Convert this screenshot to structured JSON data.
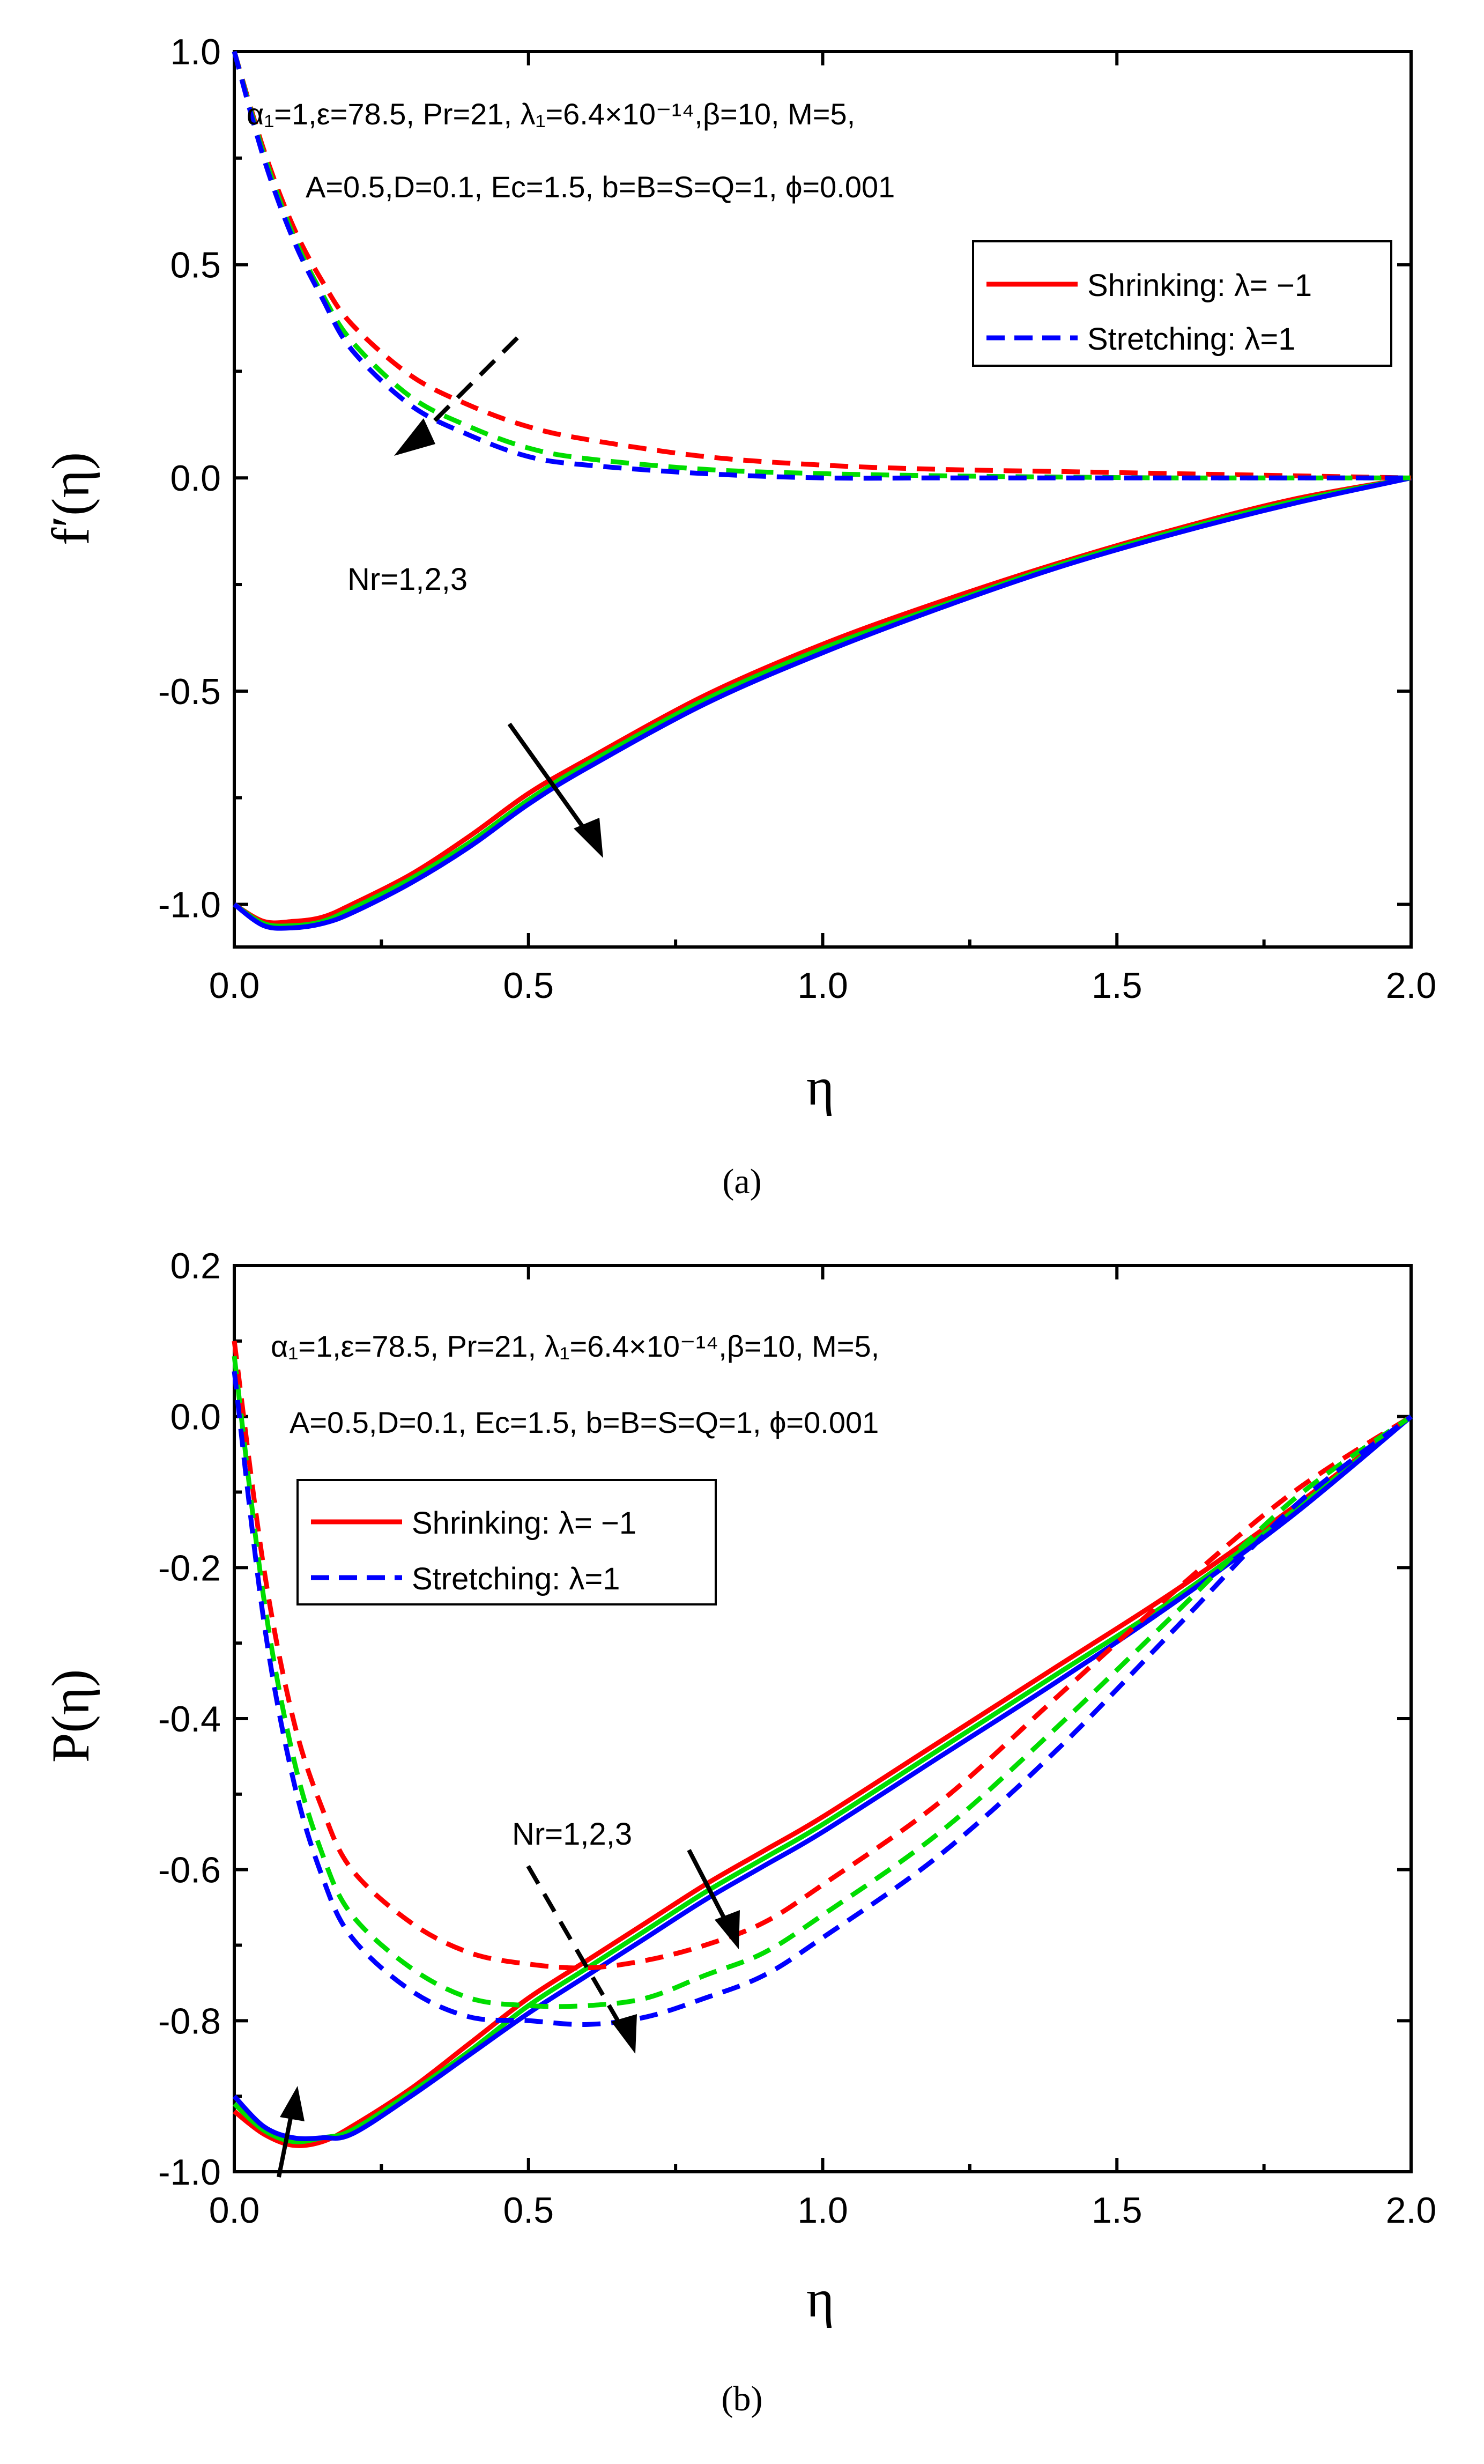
{
  "chart_data": [
    {
      "type": "line",
      "caption": "(a)",
      "xlabel": "η",
      "ylabel": "f′(η)",
      "xlim": [
        0,
        2
      ],
      "ylim": [
        -1.1,
        1.0
      ],
      "xticks": [
        "0.0",
        "0.5",
        "1.0",
        "1.5",
        "2.0"
      ],
      "yticks": [
        "1.0",
        "0.5",
        "0.0",
        "-0.5",
        "-1.0"
      ],
      "ytick_values": [
        1.0,
        0.5,
        0.0,
        -0.5,
        -1.0
      ],
      "xtick_values": [
        0,
        0.5,
        1.0,
        1.5,
        2.0
      ],
      "params_line1": "α₁=1,ε=78.5, Pr=21, λ₁=6.4×10⁻¹⁴,β=10, M=5,",
      "params_line2": "A=0.5,D=0.1, Ec=1.5, b=B=S=Q=1, ϕ=0.001",
      "legend": {
        "shrinking": "Shrinking: λ= −1",
        "stretching": "Stretching: λ=1"
      },
      "annotation": "Nr=1,2,3",
      "colors": [
        "#ff0000",
        "#00dd00",
        "#0000ff"
      ],
      "x": [
        0,
        0.05,
        0.1,
        0.15,
        0.2,
        0.3,
        0.4,
        0.5,
        0.6,
        0.8,
        1.0,
        1.2,
        1.4,
        1.6,
        1.8,
        2.0
      ],
      "series": [
        {
          "name": "Shrinking Nr=1",
          "style": "solid",
          "color": "#ff0000",
          "values": [
            -1.0,
            -1.04,
            -1.04,
            -1.03,
            -1.0,
            -0.93,
            -0.84,
            -0.74,
            -0.66,
            -0.51,
            -0.39,
            -0.29,
            -0.2,
            -0.12,
            -0.05,
            0.0
          ]
        },
        {
          "name": "Shrinking Nr=2",
          "style": "solid",
          "color": "#00dd00",
          "values": [
            -1.0,
            -1.045,
            -1.05,
            -1.04,
            -1.01,
            -0.94,
            -0.855,
            -0.755,
            -0.67,
            -0.52,
            -0.4,
            -0.3,
            -0.205,
            -0.125,
            -0.055,
            0.0
          ]
        },
        {
          "name": "Shrinking Nr=3",
          "style": "solid",
          "color": "#0000ff",
          "values": [
            -1.0,
            -1.05,
            -1.055,
            -1.045,
            -1.02,
            -0.95,
            -0.865,
            -0.765,
            -0.68,
            -0.53,
            -0.41,
            -0.305,
            -0.21,
            -0.13,
            -0.06,
            0.0
          ]
        },
        {
          "name": "Stretching Nr=1",
          "style": "dashed",
          "color": "#ff0000",
          "values": [
            1.0,
            0.77,
            0.59,
            0.46,
            0.36,
            0.24,
            0.17,
            0.12,
            0.09,
            0.05,
            0.03,
            0.02,
            0.015,
            0.01,
            0.005,
            0.0
          ]
        },
        {
          "name": "Stretching Nr=2",
          "style": "dashed",
          "color": "#00dd00",
          "values": [
            1.0,
            0.76,
            0.57,
            0.43,
            0.32,
            0.19,
            0.12,
            0.07,
            0.045,
            0.02,
            0.01,
            0.005,
            0.002,
            0.0,
            0.0,
            0.0
          ]
        },
        {
          "name": "Stretching Nr=3",
          "style": "dashed",
          "color": "#0000ff",
          "values": [
            1.0,
            0.75,
            0.56,
            0.42,
            0.3,
            0.17,
            0.1,
            0.05,
            0.03,
            0.01,
            0.0,
            0.0,
            0.0,
            0.0,
            0.0,
            0.0
          ]
        }
      ]
    },
    {
      "type": "line",
      "caption": "(b)",
      "xlabel": "η",
      "ylabel": "P(η)",
      "xlim": [
        0,
        2
      ],
      "ylim": [
        -1.0,
        0.2
      ],
      "xticks": [
        "0.0",
        "0.5",
        "1.0",
        "1.5",
        "2.0"
      ],
      "yticks": [
        "0.2",
        "0.0",
        "-0.2",
        "-0.4",
        "-0.6",
        "-0.8",
        "-1.0"
      ],
      "ytick_values": [
        0.2,
        0.0,
        -0.2,
        -0.4,
        -0.6,
        -0.8,
        -1.0
      ],
      "xtick_values": [
        0,
        0.5,
        1.0,
        1.5,
        2.0
      ],
      "params_line1": "α₁=1,ε=78.5, Pr=21, λ₁=6.4×10⁻¹⁴,β=10, M=5,",
      "params_line2": "A=0.5,D=0.1, Ec=1.5, b=B=S=Q=1, ϕ=0.001",
      "legend": {
        "shrinking": "Shrinking: λ= −1",
        "stretching": "Stretching: λ=1"
      },
      "annotation": "Nr=1,2,3",
      "colors": [
        "#ff0000",
        "#00dd00",
        "#0000ff"
      ],
      "x": [
        0,
        0.05,
        0.1,
        0.15,
        0.2,
        0.3,
        0.4,
        0.5,
        0.6,
        0.7,
        0.8,
        0.9,
        1.0,
        1.2,
        1.4,
        1.6,
        1.8,
        2.0
      ],
      "series": [
        {
          "name": "Shrinking Nr=1",
          "style": "solid",
          "color": "#ff0000",
          "values": [
            -0.92,
            -0.95,
            -0.965,
            -0.96,
            -0.94,
            -0.89,
            -0.83,
            -0.77,
            -0.72,
            -0.67,
            -0.62,
            -0.575,
            -0.53,
            -0.43,
            -0.33,
            -0.23,
            -0.12,
            0.0
          ]
        },
        {
          "name": "Shrinking Nr=2",
          "style": "solid",
          "color": "#00dd00",
          "values": [
            -0.91,
            -0.945,
            -0.96,
            -0.955,
            -0.945,
            -0.895,
            -0.84,
            -0.78,
            -0.73,
            -0.68,
            -0.63,
            -0.585,
            -0.54,
            -0.44,
            -0.34,
            -0.24,
            -0.125,
            0.0
          ]
        },
        {
          "name": "Shrinking Nr=3",
          "style": "solid",
          "color": "#0000ff",
          "values": [
            -0.9,
            -0.94,
            -0.955,
            -0.955,
            -0.95,
            -0.9,
            -0.845,
            -0.79,
            -0.74,
            -0.69,
            -0.64,
            -0.595,
            -0.55,
            -0.45,
            -0.35,
            -0.245,
            -0.13,
            0.0
          ]
        },
        {
          "name": "Stretching Nr=1",
          "style": "dashed",
          "color": "#ff0000",
          "values": [
            0.1,
            -0.2,
            -0.4,
            -0.52,
            -0.6,
            -0.67,
            -0.71,
            -0.725,
            -0.73,
            -0.72,
            -0.7,
            -0.67,
            -0.62,
            -0.51,
            -0.37,
            -0.23,
            -0.1,
            0.0
          ]
        },
        {
          "name": "Stretching Nr=2",
          "style": "dashed",
          "color": "#00dd00",
          "values": [
            0.08,
            -0.24,
            -0.45,
            -0.58,
            -0.66,
            -0.73,
            -0.77,
            -0.78,
            -0.78,
            -0.77,
            -0.74,
            -0.71,
            -0.66,
            -0.55,
            -0.41,
            -0.26,
            -0.11,
            0.0
          ]
        },
        {
          "name": "Stretching Nr=3",
          "style": "dashed",
          "color": "#0000ff",
          "values": [
            0.06,
            -0.27,
            -0.48,
            -0.61,
            -0.69,
            -0.76,
            -0.795,
            -0.8,
            -0.805,
            -0.795,
            -0.77,
            -0.74,
            -0.69,
            -0.58,
            -0.44,
            -0.28,
            -0.12,
            0.0
          ]
        }
      ]
    }
  ]
}
